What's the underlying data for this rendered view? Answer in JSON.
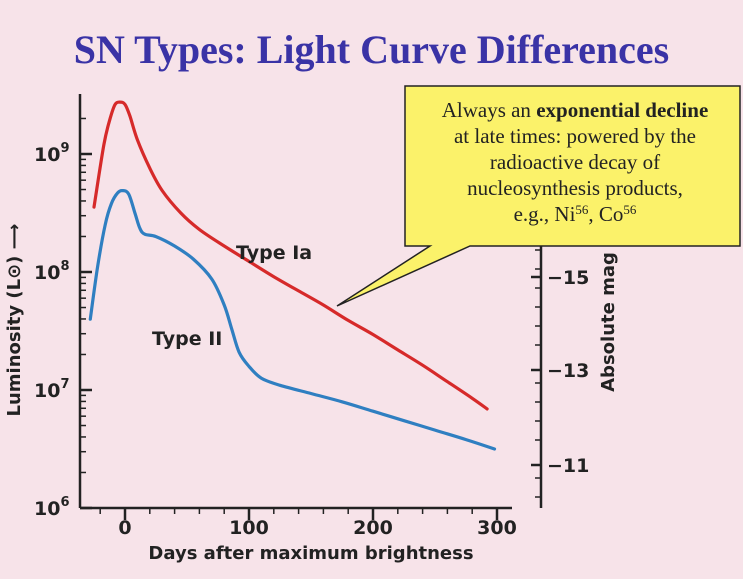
{
  "slide": {
    "title": "SN Types: Light Curve Differences"
  },
  "callout": {
    "line1_plain": "Always an ",
    "line1_bold": "exponential decline",
    "line2": "at late times: powered by the",
    "line3": "radioactive decay of",
    "line4": "nucleosynthesis products,",
    "line5_prefix": "e.g., Ni",
    "ni_mass": "56",
    "sep": ", Co",
    "co_mass": "56"
  },
  "colors": {
    "background": "#f7e3e9",
    "title": "#3a33a6",
    "type_ia": "#d62a2a",
    "type_ii": "#2f7fc1",
    "callout_fill": "#fbf26a"
  },
  "chart_data": {
    "type": "line",
    "xlabel": "Days after maximum brightness",
    "ylabel": "Luminosity (L⊙) ⟶",
    "y2label": "Absolute mag",
    "xlim": [
      -30,
      305
    ],
    "ylim_log10": [
      6,
      9.45
    ],
    "y_scale": "log",
    "x_ticks": [
      0,
      100,
      200,
      300
    ],
    "y_tick_labels": [
      {
        "base": "10",
        "exp": "6",
        "value": 1000000
      },
      {
        "base": "10",
        "exp": "7",
        "value": 10000000
      },
      {
        "base": "10",
        "exp": "8",
        "value": 100000000
      },
      {
        "base": "10",
        "exp": "9",
        "value": 1000000000
      }
    ],
    "y2_ticks": [
      "−11",
      "−13",
      "−15"
    ],
    "series": [
      {
        "name": "Type Ia",
        "x": [
          -25,
          -17,
          -12,
          -8,
          -4,
          0,
          4,
          10,
          20,
          30,
          45,
          60,
          80,
          100,
          120,
          140,
          160,
          180,
          200,
          220,
          240,
          260,
          280,
          292
        ],
        "log10L": [
          8.55,
          9.08,
          9.3,
          9.42,
          9.44,
          9.42,
          9.32,
          9.12,
          8.88,
          8.69,
          8.5,
          8.36,
          8.22,
          8.09,
          7.96,
          7.84,
          7.72,
          7.59,
          7.47,
          7.34,
          7.21,
          7.07,
          6.93,
          6.84
        ]
      },
      {
        "name": "Type II",
        "x": [
          -28,
          -22,
          -16,
          -11,
          -6,
          -2,
          3,
          8,
          12,
          16,
          25,
          40,
          55,
          70,
          80,
          86,
          92,
          100,
          110,
          125,
          150,
          175,
          200,
          225,
          250,
          275,
          298
        ],
        "log10L": [
          7.6,
          8.05,
          8.4,
          8.58,
          8.67,
          8.69,
          8.66,
          8.5,
          8.37,
          8.32,
          8.3,
          8.22,
          8.11,
          7.94,
          7.72,
          7.52,
          7.32,
          7.2,
          7.1,
          7.04,
          6.97,
          6.9,
          6.82,
          6.74,
          6.66,
          6.58,
          6.5
        ]
      }
    ]
  }
}
